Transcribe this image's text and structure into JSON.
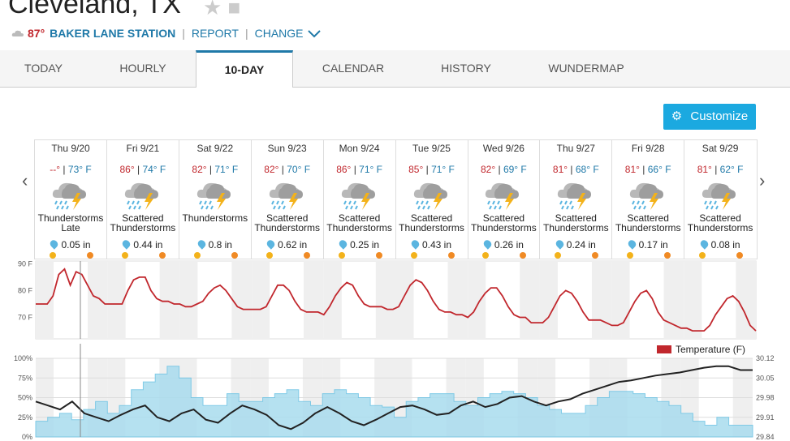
{
  "header": {
    "city": "Cleveland, TX",
    "current_temp": "87°",
    "station": "BAKER LANE STATION",
    "sep": "|",
    "report": "REPORT",
    "change": "CHANGE"
  },
  "tabs": [
    "TODAY",
    "HOURLY",
    "10-DAY",
    "CALENDAR",
    "HISTORY",
    "WUNDERMAP"
  ],
  "active_tab": "10-DAY",
  "customize_label": "Customize",
  "days": [
    {
      "date": "Thu 9/20",
      "hi": "--°",
      "lo": "73° F",
      "cond1": "Thunderstorms",
      "cond2": "Late",
      "precip": "0.05 in"
    },
    {
      "date": "Fri 9/21",
      "hi": "86°",
      "lo": "74° F",
      "cond1": "Scattered",
      "cond2": "Thunderstorms",
      "precip": "0.44 in"
    },
    {
      "date": "Sat 9/22",
      "hi": "82°",
      "lo": "71° F",
      "cond1": "Thunderstorms",
      "cond2": "",
      "precip": "0.8 in"
    },
    {
      "date": "Sun 9/23",
      "hi": "82°",
      "lo": "70° F",
      "cond1": "Scattered",
      "cond2": "Thunderstorms",
      "precip": "0.62 in"
    },
    {
      "date": "Mon 9/24",
      "hi": "86°",
      "lo": "71° F",
      "cond1": "Scattered",
      "cond2": "Thunderstorms",
      "precip": "0.25 in"
    },
    {
      "date": "Tue 9/25",
      "hi": "85°",
      "lo": "71° F",
      "cond1": "Scattered",
      "cond2": "Thunderstorms",
      "precip": "0.43 in"
    },
    {
      "date": "Wed 9/26",
      "hi": "82°",
      "lo": "69° F",
      "cond1": "Scattered",
      "cond2": "Thunderstorms",
      "precip": "0.26 in"
    },
    {
      "date": "Thu 9/27",
      "hi": "81°",
      "lo": "68° F",
      "cond1": "Scattered",
      "cond2": "Thunderstorms",
      "precip": "0.24 in"
    },
    {
      "date": "Fri 9/28",
      "hi": "81°",
      "lo": "66° F",
      "cond1": "Scattered",
      "cond2": "Thunderstorms",
      "precip": "0.17 in"
    },
    {
      "date": "Sat 9/29",
      "hi": "81°",
      "lo": "62° F",
      "cond1": "Scattered",
      "cond2": "Thunderstorms",
      "precip": "0.08 in"
    }
  ],
  "colors": {
    "accent": "#1f79a8",
    "high": "#c1272d",
    "button": "#1ba9e0",
    "temp_line": "#c1272d",
    "precip_fill": "#a9dcee"
  },
  "temp_chart": {
    "y_ticks": [
      "90 F",
      "80 F",
      "70 F"
    ],
    "values": [
      75,
      75,
      75,
      78,
      86,
      88,
      82,
      87,
      86,
      82,
      78,
      77,
      75,
      75,
      75,
      75,
      80,
      84,
      85,
      85,
      80,
      77,
      76,
      76,
      75,
      75,
      74,
      74,
      75,
      76,
      79,
      81,
      82,
      80,
      77,
      74,
      73,
      73,
      73,
      73,
      74,
      78,
      82,
      82,
      80,
      76,
      73,
      72,
      72,
      72,
      71,
      74,
      78,
      81,
      83,
      82,
      78,
      75,
      74,
      74,
      74,
      73,
      73,
      74,
      78,
      82,
      84,
      83,
      80,
      76,
      73,
      72,
      72,
      71,
      71,
      70,
      72,
      76,
      79,
      81,
      81,
      78,
      74,
      71,
      70,
      70,
      68,
      68,
      68,
      70,
      74,
      78,
      80,
      79,
      76,
      72,
      69,
      69,
      69,
      68,
      67,
      67,
      68,
      72,
      76,
      79,
      80,
      77,
      72,
      69,
      68,
      67,
      66,
      66,
      65,
      65,
      65,
      67,
      71,
      74,
      77,
      78,
      76,
      72,
      67,
      65
    ]
  },
  "precip_chart": {
    "legend": "Temperature (F)",
    "y_ticks_left": [
      "100%",
      "75%",
      "50%",
      "25%",
      "0%"
    ],
    "y_ticks_right": [
      "30.12",
      "30.05",
      "29.98",
      "29.91",
      "29.84"
    ]
  }
}
